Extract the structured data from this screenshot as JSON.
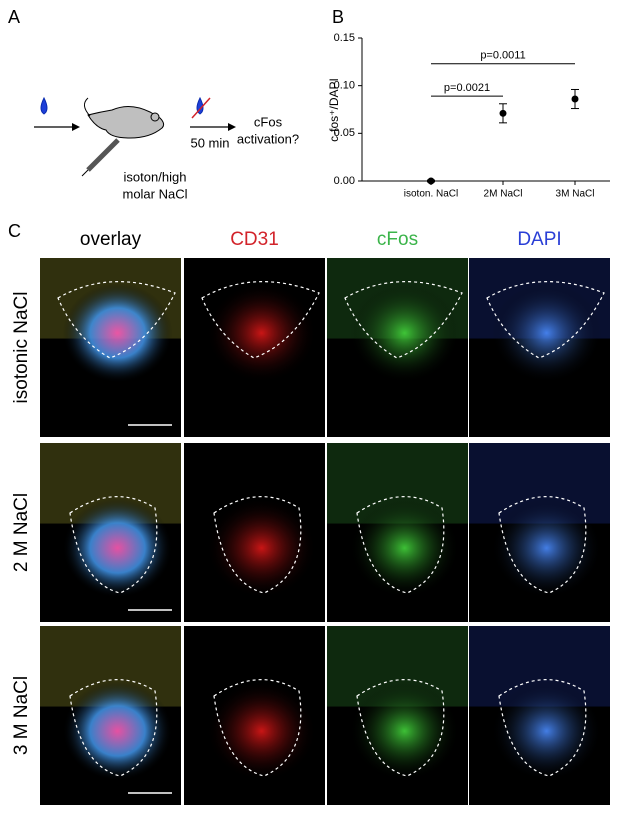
{
  "panel_a": {
    "letter": "A",
    "time": "50 min",
    "outcome": [
      "cFos",
      "activation?"
    ],
    "treatment": [
      "isoton/high",
      "molar NaCl"
    ]
  },
  "chart_data": {
    "type": "errorbar",
    "letter": "B",
    "ylabel": "c-fos⁺/DAPI",
    "categories": [
      "isoton. NaCl",
      "2M NaCl",
      "3M NaCl"
    ],
    "values": [
      0.0,
      0.071,
      0.086
    ],
    "errors": [
      0.001,
      0.01,
      0.01
    ],
    "color": "#000000",
    "ylim": [
      0,
      0.15
    ],
    "yticks": [
      {
        "value": 0,
        "label": "0.00"
      },
      {
        "value": 0.05,
        "label": "0.05"
      },
      {
        "value": 0.1,
        "label": "0.10"
      },
      {
        "value": 0.15,
        "label": "0.15"
      }
    ],
    "annotations": [
      {
        "text": "p=0.0021",
        "y": 0.089
      },
      {
        "text": "p=0.0011",
        "y": 0.123
      }
    ]
  },
  "panel_c": {
    "letter": "C",
    "columns": [
      {
        "label": "overlay",
        "color": "#000000"
      },
      {
        "label": "CD31",
        "color": "#d2232a"
      },
      {
        "label": "cFos",
        "color": "#3bb44a"
      },
      {
        "label": "DAPI",
        "color": "#2a3fd6"
      }
    ],
    "rows": [
      "isotonic NaCl",
      "2 M NaCl",
      "3 M NaCl"
    ]
  }
}
